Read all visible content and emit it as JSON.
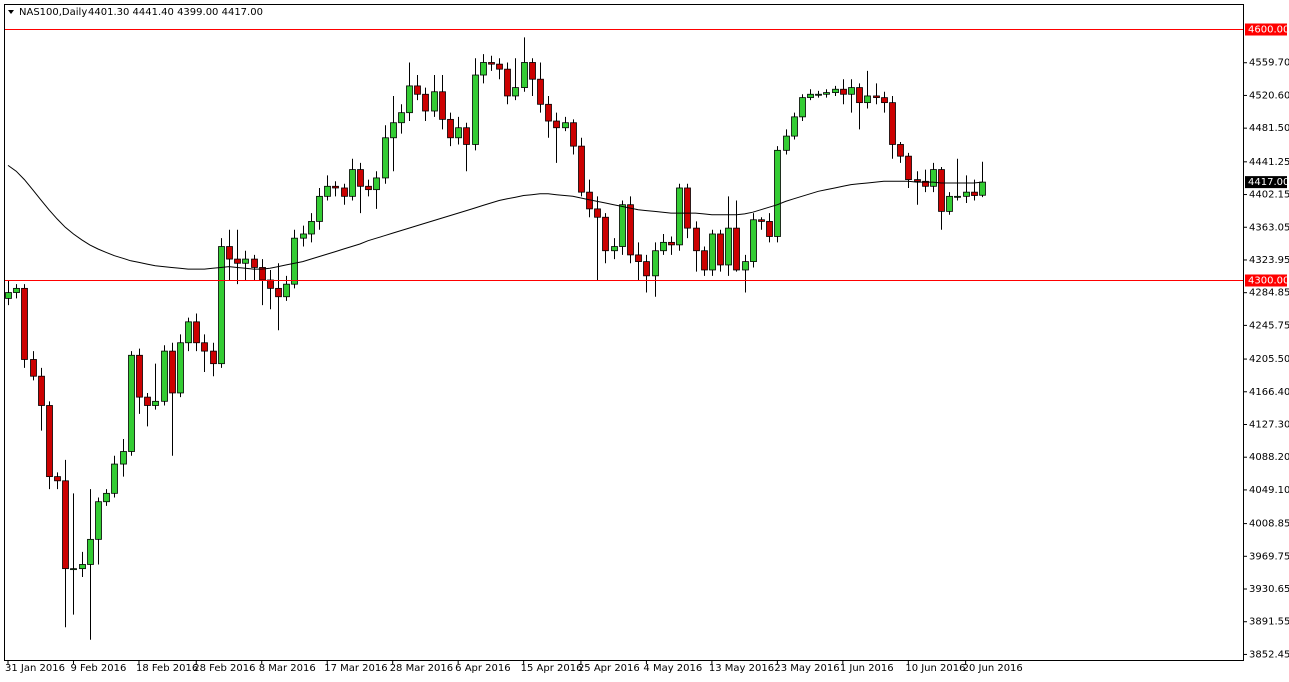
{
  "chart_data": {
    "type": "candlestick",
    "title": "NAS100,Daily",
    "info": "4401.30 4441.40 4399.00 4417.00",
    "colors": {
      "up": "#33cc33",
      "down": "#cc0000",
      "outline": "#000000",
      "ma": "#000000",
      "hline": "#ff0000"
    },
    "ylim": [
      3845.8,
      4628.7
    ],
    "yticks": [
      {
        "value": 4559.7,
        "label": "4559.70"
      },
      {
        "value": 4520.6,
        "label": "4520.60"
      },
      {
        "value": 4481.5,
        "label": "4481.50"
      },
      {
        "value": 4441.25,
        "label": "4441.25"
      },
      {
        "value": 4402.15,
        "label": "4402.15"
      },
      {
        "value": 4363.05,
        "label": "4363.05"
      },
      {
        "value": 4323.95,
        "label": "4323.95"
      },
      {
        "value": 4284.85,
        "label": "4284.85"
      },
      {
        "value": 4245.75,
        "label": "4245.75"
      },
      {
        "value": 4205.5,
        "label": "4205.50"
      },
      {
        "value": 4166.4,
        "label": "4166.40"
      },
      {
        "value": 4127.3,
        "label": "4127.30"
      },
      {
        "value": 4088.2,
        "label": "4088.20"
      },
      {
        "value": 4049.1,
        "label": "4049.10"
      },
      {
        "value": 4008.85,
        "label": "4008.85"
      },
      {
        "value": 3969.75,
        "label": "3969.75"
      },
      {
        "value": 3930.65,
        "label": "3930.65"
      },
      {
        "value": 3891.55,
        "label": "3891.55"
      },
      {
        "value": 3852.45,
        "label": "3852.45"
      }
    ],
    "hlines": [
      {
        "value": 4600,
        "label": "4600.00"
      },
      {
        "value": 4300,
        "label": "4300.00"
      }
    ],
    "last_price": {
      "value": 4417,
      "label": "4417.00"
    },
    "categories": [
      "31 Jan 2016",
      null,
      null,
      null,
      null,
      null,
      null,
      null,
      "9 Feb 2016",
      null,
      null,
      null,
      null,
      null,
      null,
      null,
      "18 Feb 2016",
      null,
      null,
      null,
      null,
      null,
      null,
      "28 Feb 2016",
      null,
      null,
      null,
      null,
      null,
      null,
      null,
      "8 Mar 2016",
      null,
      null,
      null,
      null,
      null,
      null,
      null,
      "17 Mar 2016",
      null,
      null,
      null,
      null,
      null,
      null,
      null,
      "28 Mar 2016",
      null,
      null,
      null,
      null,
      null,
      null,
      null,
      "6 Apr 2016",
      null,
      null,
      null,
      null,
      null,
      null,
      null,
      "15 Apr 2016",
      null,
      null,
      null,
      null,
      null,
      null,
      "25 Apr 2016",
      null,
      null,
      null,
      null,
      null,
      null,
      null,
      "4 May 2016",
      null,
      null,
      null,
      null,
      null,
      null,
      null,
      "13 May 2016",
      null,
      null,
      null,
      null,
      null,
      null,
      null,
      "23 May 2016",
      null,
      null,
      null,
      null,
      null,
      null,
      null,
      "1 Jun 2016",
      null,
      null,
      null,
      null,
      null,
      null,
      null,
      "10 Jun 2016",
      null,
      null,
      null,
      null,
      null,
      null,
      "20 Jun 2016",
      null,
      null
    ],
    "ohlc": [
      [
        4278,
        4300,
        4270,
        4285
      ],
      [
        4285,
        4295,
        4278,
        4290
      ],
      [
        4290,
        4295,
        4195,
        4205
      ],
      [
        4205,
        4215,
        4180,
        4185
      ],
      [
        4185,
        4195,
        4120,
        4150
      ],
      [
        4150,
        4155,
        4050,
        4065
      ],
      [
        4065,
        4070,
        4050,
        4060
      ],
      [
        4060,
        4085,
        3885,
        3955
      ],
      [
        3955,
        4045,
        3900,
        3955
      ],
      [
        3955,
        3975,
        3945,
        3960
      ],
      [
        3960,
        4050,
        3870,
        3990
      ],
      [
        3990,
        4040,
        3960,
        4035
      ],
      [
        4035,
        4050,
        4030,
        4045
      ],
      [
        4045,
        4090,
        4040,
        4080
      ],
      [
        4080,
        4110,
        4065,
        4095
      ],
      [
        4095,
        4215,
        4090,
        4210
      ],
      [
        4210,
        4218,
        4140,
        4160
      ],
      [
        4160,
        4165,
        4125,
        4150
      ],
      [
        4150,
        4200,
        4145,
        4155
      ],
      [
        4155,
        4222,
        4150,
        4215
      ],
      [
        4215,
        4225,
        4090,
        4165
      ],
      [
        4165,
        4235,
        4160,
        4225
      ],
      [
        4225,
        4255,
        4215,
        4250
      ],
      [
        4250,
        4260,
        4215,
        4225
      ],
      [
        4225,
        4235,
        4190,
        4215
      ],
      [
        4215,
        4225,
        4185,
        4200
      ],
      [
        4200,
        4350,
        4195,
        4340
      ],
      [
        4340,
        4360,
        4300,
        4325
      ],
      [
        4325,
        4360,
        4295,
        4320
      ],
      [
        4320,
        4335,
        4300,
        4325
      ],
      [
        4325,
        4330,
        4300,
        4315
      ],
      [
        4315,
        4325,
        4270,
        4300
      ],
      [
        4300,
        4312,
        4265,
        4290
      ],
      [
        4290,
        4320,
        4240,
        4280
      ],
      [
        4280,
        4305,
        4275,
        4295
      ],
      [
        4295,
        4360,
        4290,
        4350
      ],
      [
        4350,
        4365,
        4340,
        4355
      ],
      [
        4355,
        4380,
        4345,
        4370
      ],
      [
        4370,
        4410,
        4360,
        4400
      ],
      [
        4400,
        4425,
        4395,
        4412
      ],
      [
        4412,
        4418,
        4400,
        4410
      ],
      [
        4410,
        4415,
        4390,
        4400
      ],
      [
        4400,
        4445,
        4395,
        4432
      ],
      [
        4432,
        4440,
        4380,
        4412
      ],
      [
        4412,
        4420,
        4400,
        4408
      ],
      [
        4408,
        4430,
        4385,
        4422
      ],
      [
        4422,
        4485,
        4415,
        4470
      ],
      [
        4470,
        4520,
        4430,
        4488
      ],
      [
        4488,
        4510,
        4475,
        4500
      ],
      [
        4500,
        4560,
        4490,
        4532
      ],
      [
        4532,
        4545,
        4515,
        4522
      ],
      [
        4522,
        4530,
        4490,
        4502
      ],
      [
        4502,
        4545,
        4495,
        4525
      ],
      [
        4525,
        4545,
        4480,
        4492
      ],
      [
        4492,
        4500,
        4460,
        4470
      ],
      [
        4470,
        4495,
        4462,
        4482
      ],
      [
        4482,
        4488,
        4430,
        4462
      ],
      [
        4462,
        4565,
        4455,
        4545
      ],
      [
        4545,
        4570,
        4535,
        4560
      ],
      [
        4560,
        4568,
        4550,
        4558
      ],
      [
        4558,
        4565,
        4540,
        4552
      ],
      [
        4552,
        4560,
        4510,
        4520
      ],
      [
        4520,
        4565,
        4515,
        4530
      ],
      [
        4530,
        4590,
        4525,
        4560
      ],
      [
        4560,
        4565,
        4520,
        4540
      ],
      [
        4540,
        4560,
        4500,
        4510
      ],
      [
        4510,
        4520,
        4470,
        4490
      ],
      [
        4490,
        4500,
        4440,
        4482
      ],
      [
        4482,
        4495,
        4478,
        4488
      ],
      [
        4488,
        4492,
        4450,
        4460
      ],
      [
        4460,
        4470,
        4400,
        4405
      ],
      [
        4405,
        4420,
        4375,
        4385
      ],
      [
        4385,
        4400,
        4300,
        4375
      ],
      [
        4375,
        4380,
        4320,
        4335
      ],
      [
        4335,
        4350,
        4325,
        4340
      ],
      [
        4340,
        4395,
        4330,
        4390
      ],
      [
        4390,
        4400,
        4320,
        4330
      ],
      [
        4330,
        4345,
        4300,
        4322
      ],
      [
        4322,
        4330,
        4285,
        4305
      ],
      [
        4305,
        4345,
        4280,
        4335
      ],
      [
        4335,
        4355,
        4330,
        4345
      ],
      [
        4345,
        4352,
        4330,
        4342
      ],
      [
        4342,
        4415,
        4335,
        4410
      ],
      [
        4410,
        4415,
        4350,
        4362
      ],
      [
        4362,
        4370,
        4310,
        4335
      ],
      [
        4335,
        4340,
        4305,
        4312
      ],
      [
        4312,
        4360,
        4305,
        4355
      ],
      [
        4355,
        4360,
        4310,
        4318
      ],
      [
        4318,
        4400,
        4305,
        4362
      ],
      [
        4362,
        4395,
        4310,
        4312
      ],
      [
        4312,
        4330,
        4285,
        4322
      ],
      [
        4322,
        4380,
        4315,
        4372
      ],
      [
        4372,
        4375,
        4360,
        4370
      ],
      [
        4370,
        4380,
        4345,
        4352
      ],
      [
        4352,
        4460,
        4345,
        4455
      ],
      [
        4455,
        4480,
        4450,
        4472
      ],
      [
        4472,
        4500,
        4468,
        4495
      ],
      [
        4495,
        4522,
        4490,
        4518
      ],
      [
        4518,
        4528,
        4515,
        4522
      ],
      [
        4522,
        4526,
        4518,
        4522
      ],
      [
        4522,
        4528,
        4518,
        4524
      ],
      [
        4524,
        4532,
        4520,
        4528
      ],
      [
        4528,
        4540,
        4510,
        4522
      ],
      [
        4522,
        4540,
        4500,
        4530
      ],
      [
        4530,
        4535,
        4480,
        4512
      ],
      [
        4512,
        4550,
        4505,
        4520
      ],
      [
        4520,
        4535,
        4510,
        4518
      ],
      [
        4518,
        4525,
        4500,
        4512
      ],
      [
        4512,
        4520,
        4445,
        4462
      ],
      [
        4462,
        4465,
        4440,
        4448
      ],
      [
        4448,
        4452,
        4410,
        4420
      ],
      [
        4420,
        4430,
        4390,
        4418
      ],
      [
        4418,
        4432,
        4405,
        4412
      ],
      [
        4412,
        4440,
        4405,
        4432
      ],
      [
        4432,
        4435,
        4360,
        4382
      ],
      [
        4382,
        4405,
        4378,
        4400
      ],
      [
        4400,
        4445,
        4395,
        4400
      ],
      [
        4400,
        4425,
        4392,
        4405
      ],
      [
        4405,
        4420,
        4395,
        4401
      ],
      [
        4401.3,
        4441.4,
        4399,
        4417
      ]
    ],
    "ma": [
      4437,
      4430,
      4420,
      4408,
      4396,
      4384,
      4373,
      4363,
      4355,
      4348,
      4342,
      4337,
      4333,
      4329,
      4326,
      4323,
      4321,
      4319,
      4317,
      4316,
      4315,
      4314,
      4313,
      4313,
      4313,
      4314,
      4315,
      4316,
      4315,
      4314,
      4313,
      4313,
      4314,
      4316,
      4318,
      4320,
      4322,
      4325,
      4328,
      4331,
      4334,
      4337,
      4340,
      4343,
      4347,
      4350,
      4353,
      4356,
      4359,
      4362,
      4365,
      4368,
      4371,
      4374,
      4377,
      4380,
      4383,
      4386,
      4389,
      4392,
      4395,
      4397,
      4399,
      4401,
      4402,
      4403,
      4403,
      4402,
      4401,
      4400,
      4398,
      4396,
      4394,
      4392,
      4390,
      4388,
      4386,
      4384,
      4383,
      4382,
      4381,
      4380,
      4380,
      4380,
      4380,
      4379,
      4378,
      4378,
      4378,
      4378,
      4379,
      4381,
      4384,
      4387,
      4390,
      4394,
      4397,
      4400,
      4403,
      4406,
      4408,
      4410,
      4412,
      4414,
      4415,
      4416,
      4417,
      4418,
      4418,
      4418,
      4418,
      4417,
      4417,
      4417,
      4416,
      4416,
      4416,
      4416,
      4416,
      4417
    ]
  }
}
